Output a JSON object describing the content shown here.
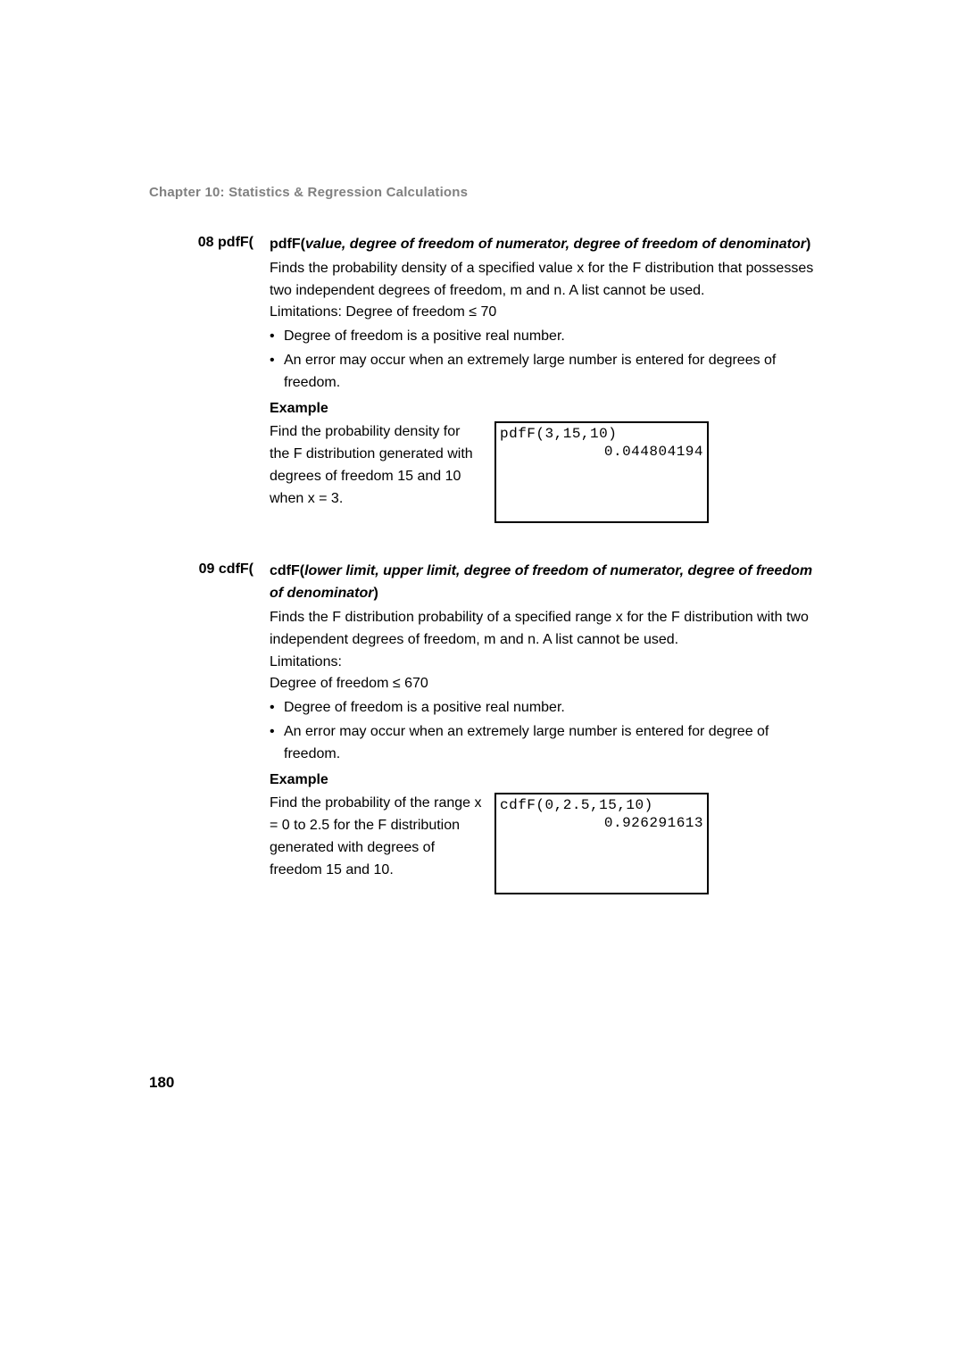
{
  "chapter": "Chapter 10: Statistics & Regression Calculations",
  "entries": [
    {
      "label": "08 pdfF(",
      "syntax_fn": "pdfF(",
      "syntax_args": "value, degree of freedom of numerator, degree of freedom of denominator",
      "syntax_close": ")",
      "desc": "Finds the probability density of a specified value x for the F distribution that possesses two independent degrees of freedom, m and n. A list cannot be used.",
      "limitations": "Limitations: Degree of freedom ≤ 70",
      "bullets": [
        "Degree of freedom is a positive real number.",
        "An error may occur when an extremely large number is entered for degrees of freedom."
      ],
      "example_heading": "Example",
      "example_text": "Find the probability density for the F distribution generated with degrees of freedom 15 and 10 when x = 3.",
      "calc_cmd": "pdfF(3,15,10)",
      "calc_result": "0.044804194"
    },
    {
      "label": "09 cdfF(",
      "syntax_fn": "cdfF(",
      "syntax_args": "lower limit, upper limit, degree of freedom of numerator, degree of freedom of denominator",
      "syntax_close": ")",
      "desc": "Finds the F distribution probability of a specified range x for the F distribution with two independent degrees of freedom, m and n. A list cannot be used.",
      "limitations": "Limitations:",
      "limitations2": "Degree of freedom ≤ 670",
      "bullets": [
        "Degree of freedom is a positive real number.",
        "An error may occur when an extremely large number is entered for degree of freedom."
      ],
      "example_heading": "Example",
      "example_text": "Find the probability of the range x = 0 to 2.5 for the F distribution generated with degrees of freedom 15 and 10.",
      "calc_cmd": "cdfF(0,2.5,15,10)",
      "calc_result": "0.926291613"
    }
  ],
  "page_number": "180"
}
